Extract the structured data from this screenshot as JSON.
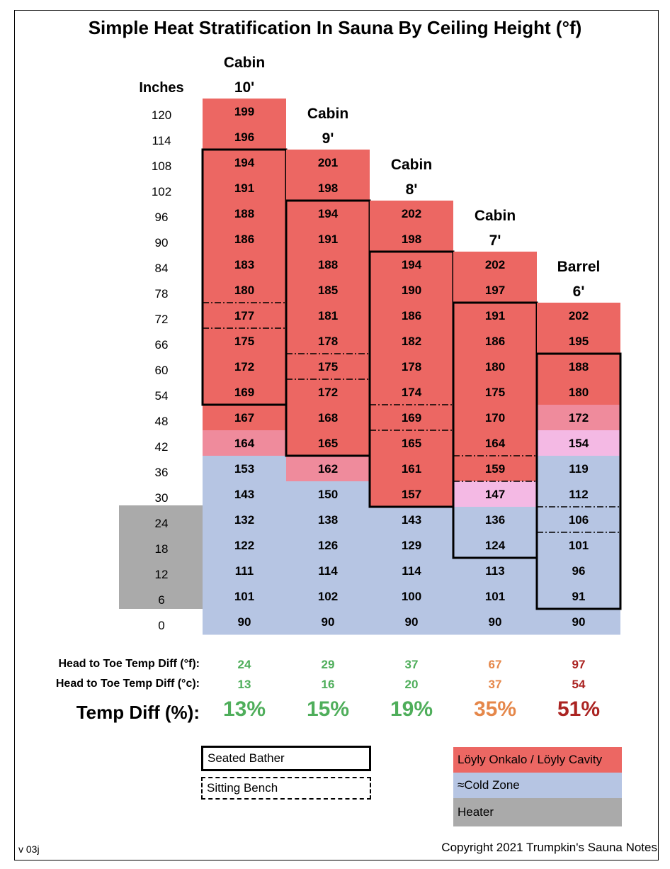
{
  "title": "Simple Heat Stratification In Sauna By Ceiling Height (°f)",
  "colors": {
    "loyly": "#ec6763",
    "pink": "#ef8b9c",
    "light_pink": "#f4b9e4",
    "cold": "#b6c5e3",
    "heater": "#aaaaaa",
    "green": "#4fae5b",
    "orange": "#e5874a",
    "red": "#ab2422"
  },
  "chart_data": {
    "type": "table",
    "title": "Simple Heat Stratification In Sauna By Ceiling Height (°f)",
    "row_axis_label": "Inches",
    "inches": [
      120,
      114,
      108,
      102,
      96,
      90,
      84,
      78,
      72,
      66,
      60,
      54,
      48,
      42,
      36,
      30,
      24,
      18,
      12,
      6,
      0
    ],
    "heater_rows": [
      24,
      18,
      12,
      6
    ],
    "columns": [
      {
        "name": "Cabin",
        "height": "10'",
        "values": [
          199,
          196,
          194,
          191,
          188,
          186,
          183,
          180,
          177,
          175,
          172,
          169,
          167,
          164,
          153,
          143,
          132,
          122,
          111,
          101,
          90
        ],
        "zones": [
          "loyly",
          "loyly",
          "loyly",
          "loyly",
          "loyly",
          "loyly",
          "loyly",
          "loyly",
          "loyly",
          "loyly",
          "loyly",
          "loyly",
          "loyly",
          "pink",
          "cold",
          "cold",
          "cold",
          "cold",
          "cold",
          "cold",
          "cold"
        ],
        "bather_rows": [
          108,
          54
        ],
        "bench_row": 72
      },
      {
        "name": "Cabin",
        "height": "9'",
        "values": [
          null,
          null,
          201,
          198,
          194,
          191,
          188,
          185,
          181,
          178,
          175,
          172,
          168,
          165,
          162,
          150,
          138,
          126,
          114,
          102,
          90
        ],
        "zones": [
          null,
          null,
          "loyly",
          "loyly",
          "loyly",
          "loyly",
          "loyly",
          "loyly",
          "loyly",
          "loyly",
          "loyly",
          "loyly",
          "loyly",
          "loyly",
          "pink",
          "cold",
          "cold",
          "cold",
          "cold",
          "cold",
          "cold"
        ],
        "bather_rows": [
          96,
          42
        ],
        "bench_row": 60
      },
      {
        "name": "Cabin",
        "height": "8'",
        "values": [
          null,
          null,
          null,
          null,
          202,
          198,
          194,
          190,
          186,
          182,
          178,
          174,
          169,
          165,
          161,
          157,
          143,
          129,
          114,
          100,
          90
        ],
        "zones": [
          null,
          null,
          null,
          null,
          "loyly",
          "loyly",
          "loyly",
          "loyly",
          "loyly",
          "loyly",
          "loyly",
          "loyly",
          "loyly",
          "loyly",
          "loyly",
          "loyly",
          "cold",
          "cold",
          "cold",
          "cold",
          "cold"
        ],
        "bather_rows": [
          84,
          30
        ],
        "bench_row": 48
      },
      {
        "name": "Cabin",
        "height": "7'",
        "values": [
          null,
          null,
          null,
          null,
          null,
          null,
          202,
          197,
          191,
          186,
          180,
          175,
          170,
          164,
          159,
          147,
          136,
          124,
          113,
          101,
          90
        ],
        "zones": [
          null,
          null,
          null,
          null,
          null,
          null,
          "loyly",
          "loyly",
          "loyly",
          "loyly",
          "loyly",
          "loyly",
          "loyly",
          "loyly",
          "loyly",
          "light_pink",
          "cold",
          "cold",
          "cold",
          "cold",
          "cold"
        ],
        "bather_rows": [
          72,
          18
        ],
        "bench_row": 36
      },
      {
        "name": "Barrel",
        "height": "6'",
        "values": [
          null,
          null,
          null,
          null,
          null,
          null,
          null,
          null,
          202,
          195,
          188,
          180,
          172,
          154,
          119,
          112,
          106,
          101,
          96,
          91,
          90
        ],
        "zones": [
          null,
          null,
          null,
          null,
          null,
          null,
          null,
          null,
          "loyly",
          "loyly",
          "loyly",
          "loyly",
          "pink",
          "light_pink",
          "cold",
          "cold",
          "cold",
          "cold",
          "cold",
          "cold",
          "cold"
        ],
        "bather_rows": [
          60,
          6
        ],
        "bench_row": 24
      }
    ],
    "diff_f": [
      24,
      29,
      37,
      67,
      97
    ],
    "diff_c": [
      13,
      16,
      20,
      37,
      54
    ],
    "diff_pct": [
      "13%",
      "15%",
      "19%",
      "35%",
      "51%"
    ],
    "diff_color": [
      "green",
      "green",
      "green",
      "orange",
      "red"
    ]
  },
  "diff_labels": {
    "f": "Head to Toe Temp Diff (°f):",
    "c": "Head to Toe Temp Diff (°c):",
    "pct": "Temp Diff (%):"
  },
  "legend": {
    "seated": "Seated Bather",
    "bench": "Sitting Bench",
    "loyly": "Löyly Onkalo / Löyly Cavity",
    "cold": "≈Cold Zone",
    "heater": "Heater"
  },
  "footer": {
    "version": "v 03j",
    "copyright": "Copyright 2021 Trumpkin's Sauna Notes"
  }
}
